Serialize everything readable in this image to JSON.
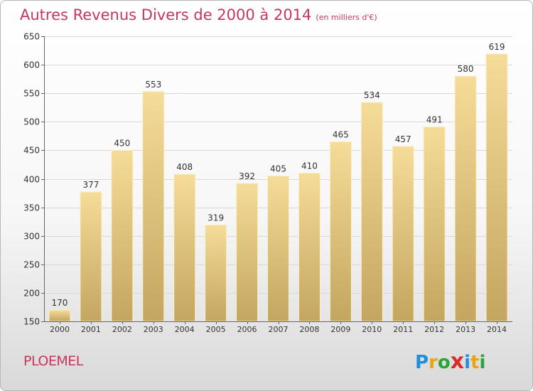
{
  "title": {
    "main": "Autres Revenus Divers de 2000 à 2014",
    "sub": "(en milliers d'€)"
  },
  "place_name": "PLOEMEL",
  "logo": {
    "letters": [
      "P",
      "r",
      "o",
      "x",
      "i",
      "t",
      "i"
    ],
    "colors": [
      "#1f8fd8",
      "#e8a417",
      "#2aa43b",
      "#d92b2b",
      "#1f8fd8",
      "#e8a417",
      "#2aa43b"
    ]
  },
  "chart_data": {
    "type": "bar",
    "categories": [
      "2000",
      "2001",
      "2002",
      "2003",
      "2004",
      "2005",
      "2006",
      "2007",
      "2008",
      "2009",
      "2010",
      "2011",
      "2012",
      "2013",
      "2014"
    ],
    "values": [
      170,
      377,
      450,
      553,
      408,
      319,
      392,
      405,
      410,
      465,
      534,
      457,
      491,
      580,
      619
    ],
    "ylim": [
      150,
      650
    ],
    "yticks": [
      150,
      200,
      250,
      300,
      350,
      400,
      450,
      500,
      550,
      600,
      650
    ],
    "grid": true,
    "colors": {
      "bar_top": "#f5dc98",
      "bar_bottom": "#c3a660",
      "bar_edge": "#fbefc7",
      "axis": "#666666",
      "grid": "#d8d8d8",
      "text": "#333333"
    }
  }
}
